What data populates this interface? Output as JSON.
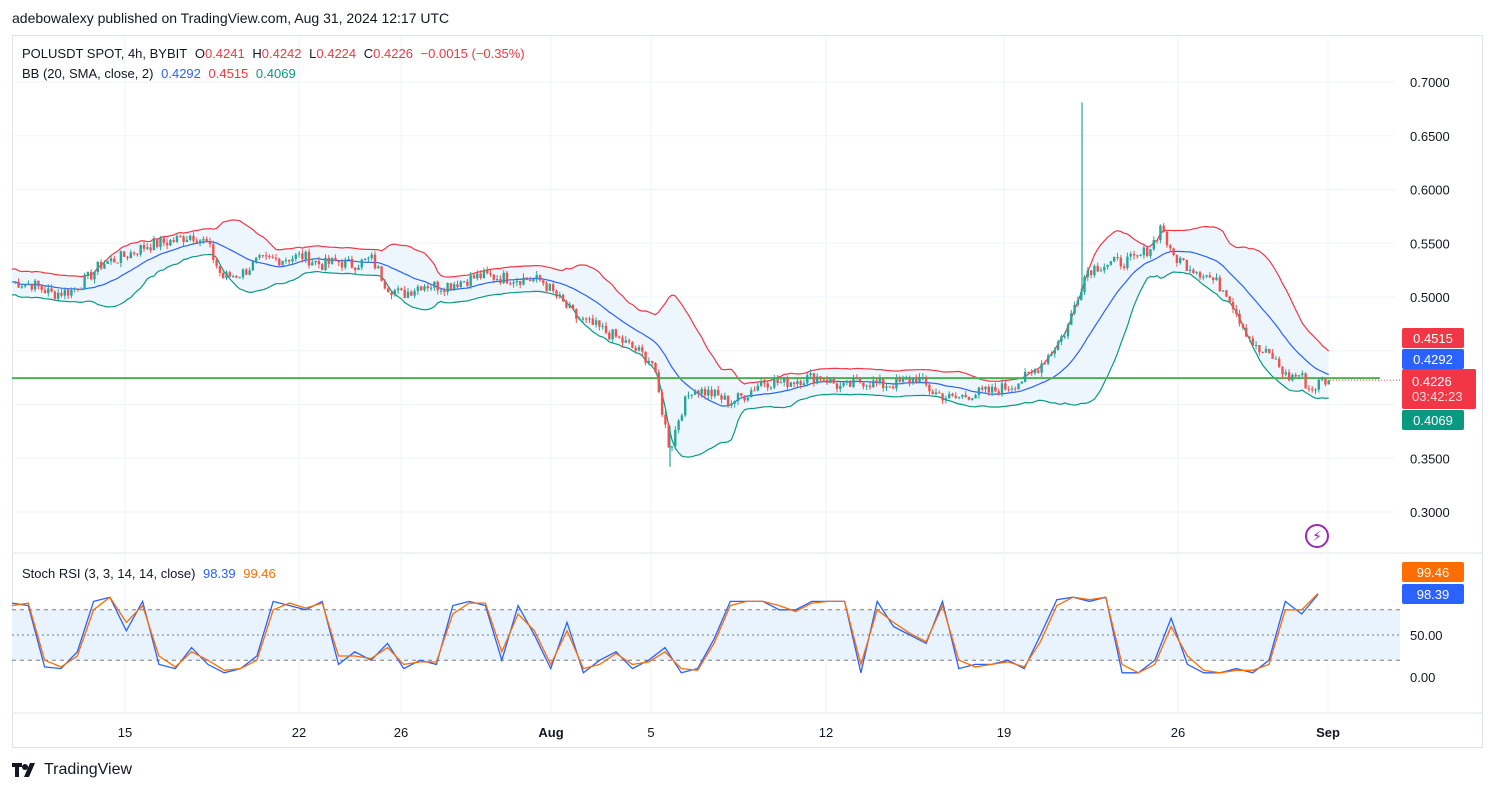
{
  "header": {
    "published_line": "adebowalexy published on TradingView.com, Aug 31, 2024 12:17 UTC"
  },
  "legend_main": {
    "symbol": "POLUSDT SPOT, 4h, BYBIT",
    "o_label": "O",
    "o": "0.4241",
    "h_label": "H",
    "h": "0.4242",
    "l_label": "L",
    "l": "0.4224",
    "c_label": "C",
    "c": "0.4226",
    "change": "−0.0015 (−0.35%)"
  },
  "legend_bb": {
    "label": "BB (20, SMA, close, 2)",
    "basis": "0.4292",
    "upper": "0.4515",
    "lower": "0.4069"
  },
  "legend_rsi": {
    "label": "Stoch RSI (3, 3, 14, 14, close)",
    "k": "98.39",
    "d": "99.46"
  },
  "price_tags": {
    "upper": "0.4515",
    "basis": "0.4292",
    "last": "0.4226",
    "countdown": "03:42:23",
    "lower": "0.4069",
    "rsi_d": "99.46",
    "rsi_k": "98.39"
  },
  "footer": {
    "brand": "TradingView"
  },
  "colors": {
    "bull": "#26a69a",
    "bear": "#ef5350",
    "bb_upper": "#f23645",
    "bb_basis": "#2962ff",
    "bb_lower": "#089981",
    "bb_fill": "#eef6fd",
    "hline": "#4caf50",
    "rsi_k": "#2962ff",
    "rsi_d": "#ff6d00",
    "rsi_band": "#e8f3fd",
    "grid": "#f0f3fa",
    "text": "#131722"
  },
  "chart_data": [
    {
      "type": "candlestick",
      "title": "POLUSDT SPOT, 4h, BYBIT",
      "x_ticks": [
        "15",
        "22",
        "26",
        "Aug",
        "5",
        "12",
        "19",
        "26",
        "Sep"
      ],
      "y_ticks": [
        "0.7000",
        "0.6500",
        "0.6000",
        "0.5500",
        "0.5000",
        "0.3500",
        "0.3000"
      ],
      "ylim": [
        0.28,
        0.72
      ],
      "horizontal_line": 0.4245,
      "last_close": 0.4226,
      "bollinger_last": {
        "upper": 0.4515,
        "basis": 0.4292,
        "lower": 0.4069
      },
      "price_path": [
        {
          "x": 0,
          "y": 0.514
        },
        {
          "x": 20,
          "y": 0.512
        },
        {
          "x": 40,
          "y": 0.503
        },
        {
          "x": 60,
          "y": 0.506
        },
        {
          "x": 75,
          "y": 0.517
        },
        {
          "x": 90,
          "y": 0.531
        },
        {
          "x": 110,
          "y": 0.537
        },
        {
          "x": 135,
          "y": 0.548
        },
        {
          "x": 160,
          "y": 0.552
        },
        {
          "x": 180,
          "y": 0.558
        },
        {
          "x": 195,
          "y": 0.55
        },
        {
          "x": 210,
          "y": 0.518
        },
        {
          "x": 230,
          "y": 0.522
        },
        {
          "x": 245,
          "y": 0.533
        },
        {
          "x": 265,
          "y": 0.535
        },
        {
          "x": 290,
          "y": 0.538
        },
        {
          "x": 310,
          "y": 0.53
        },
        {
          "x": 325,
          "y": 0.533
        },
        {
          "x": 340,
          "y": 0.53
        },
        {
          "x": 360,
          "y": 0.535
        },
        {
          "x": 375,
          "y": 0.51
        },
        {
          "x": 390,
          "y": 0.502
        },
        {
          "x": 410,
          "y": 0.512
        },
        {
          "x": 430,
          "y": 0.51
        },
        {
          "x": 450,
          "y": 0.515
        },
        {
          "x": 470,
          "y": 0.52
        },
        {
          "x": 490,
          "y": 0.518
        },
        {
          "x": 510,
          "y": 0.517
        },
        {
          "x": 530,
          "y": 0.515
        },
        {
          "x": 545,
          "y": 0.5
        },
        {
          "x": 565,
          "y": 0.48
        },
        {
          "x": 585,
          "y": 0.472
        },
        {
          "x": 605,
          "y": 0.462
        },
        {
          "x": 625,
          "y": 0.45
        },
        {
          "x": 640,
          "y": 0.44
        },
        {
          "x": 650,
          "y": 0.395
        },
        {
          "x": 658,
          "y": 0.358
        },
        {
          "x": 668,
          "y": 0.392
        },
        {
          "x": 680,
          "y": 0.415
        },
        {
          "x": 700,
          "y": 0.41
        },
        {
          "x": 718,
          "y": 0.402
        },
        {
          "x": 735,
          "y": 0.41
        },
        {
          "x": 750,
          "y": 0.422
        },
        {
          "x": 770,
          "y": 0.42
        },
        {
          "x": 790,
          "y": 0.424
        },
        {
          "x": 810,
          "y": 0.426
        },
        {
          "x": 830,
          "y": 0.415
        },
        {
          "x": 850,
          "y": 0.422
        },
        {
          "x": 870,
          "y": 0.418
        },
        {
          "x": 890,
          "y": 0.42
        },
        {
          "x": 905,
          "y": 0.425
        },
        {
          "x": 920,
          "y": 0.412
        },
        {
          "x": 940,
          "y": 0.405
        },
        {
          "x": 960,
          "y": 0.41
        },
        {
          "x": 980,
          "y": 0.412
        },
        {
          "x": 1000,
          "y": 0.418
        },
        {
          "x": 1020,
          "y": 0.428
        },
        {
          "x": 1040,
          "y": 0.45
        },
        {
          "x": 1055,
          "y": 0.47
        },
        {
          "x": 1065,
          "y": 0.5
        },
        {
          "x": 1075,
          "y": 0.525
        },
        {
          "x": 1090,
          "y": 0.53
        },
        {
          "x": 1105,
          "y": 0.532
        },
        {
          "x": 1125,
          "y": 0.535
        },
        {
          "x": 1140,
          "y": 0.548
        },
        {
          "x": 1150,
          "y": 0.568
        },
        {
          "x": 1158,
          "y": 0.54
        },
        {
          "x": 1175,
          "y": 0.53
        },
        {
          "x": 1195,
          "y": 0.52
        },
        {
          "x": 1215,
          "y": 0.505
        },
        {
          "x": 1230,
          "y": 0.475
        },
        {
          "x": 1245,
          "y": 0.45
        },
        {
          "x": 1260,
          "y": 0.445
        },
        {
          "x": 1275,
          "y": 0.425
        },
        {
          "x": 1288,
          "y": 0.428
        },
        {
          "x": 1298,
          "y": 0.413
        },
        {
          "x": 1310,
          "y": 0.422
        },
        {
          "x": 1318,
          "y": 0.4226
        }
      ],
      "spikes": [
        {
          "x": 1070,
          "high": 0.681,
          "low": 0.5
        },
        {
          "x": 658,
          "high": 0.38,
          "low": 0.342
        }
      ]
    },
    {
      "type": "line",
      "title": "Stoch RSI (3, 3, 14, 14, close)",
      "y_ticks": [
        "50.00",
        "0.00"
      ],
      "ylim": [
        -5,
        105
      ],
      "bands": [
        20,
        80
      ],
      "series": [
        {
          "name": "K",
          "values": [
            88,
            85,
            12,
            10,
            30,
            90,
            95,
            55,
            90,
            15,
            10,
            35,
            15,
            5,
            10,
            25,
            90,
            85,
            80,
            90,
            15,
            30,
            20,
            40,
            10,
            20,
            15,
            85,
            90,
            85,
            20,
            85,
            50,
            10,
            65,
            5,
            20,
            30,
            10,
            20,
            35,
            5,
            10,
            45,
            90,
            90,
            90,
            80,
            80,
            90,
            90,
            90,
            5,
            90,
            60,
            50,
            40,
            90,
            10,
            15,
            15,
            20,
            10,
            50,
            92,
            95,
            90,
            95,
            5,
            5,
            20,
            70,
            15,
            5,
            5,
            10,
            5,
            20,
            90,
            75,
            98.39
          ]
        },
        {
          "name": "D",
          "values": [
            85,
            88,
            20,
            12,
            25,
            80,
            95,
            65,
            85,
            25,
            12,
            30,
            20,
            8,
            10,
            20,
            80,
            88,
            82,
            88,
            25,
            25,
            22,
            35,
            15,
            18,
            18,
            75,
            88,
            88,
            30,
            75,
            55,
            15,
            55,
            10,
            15,
            28,
            15,
            18,
            30,
            10,
            8,
            40,
            85,
            90,
            90,
            85,
            78,
            88,
            90,
            90,
            15,
            80,
            65,
            52,
            42,
            85,
            20,
            12,
            15,
            18,
            12,
            42,
            85,
            95,
            92,
            95,
            15,
            5,
            15,
            60,
            25,
            8,
            5,
            8,
            8,
            15,
            80,
            80,
            99.46
          ]
        }
      ]
    }
  ]
}
